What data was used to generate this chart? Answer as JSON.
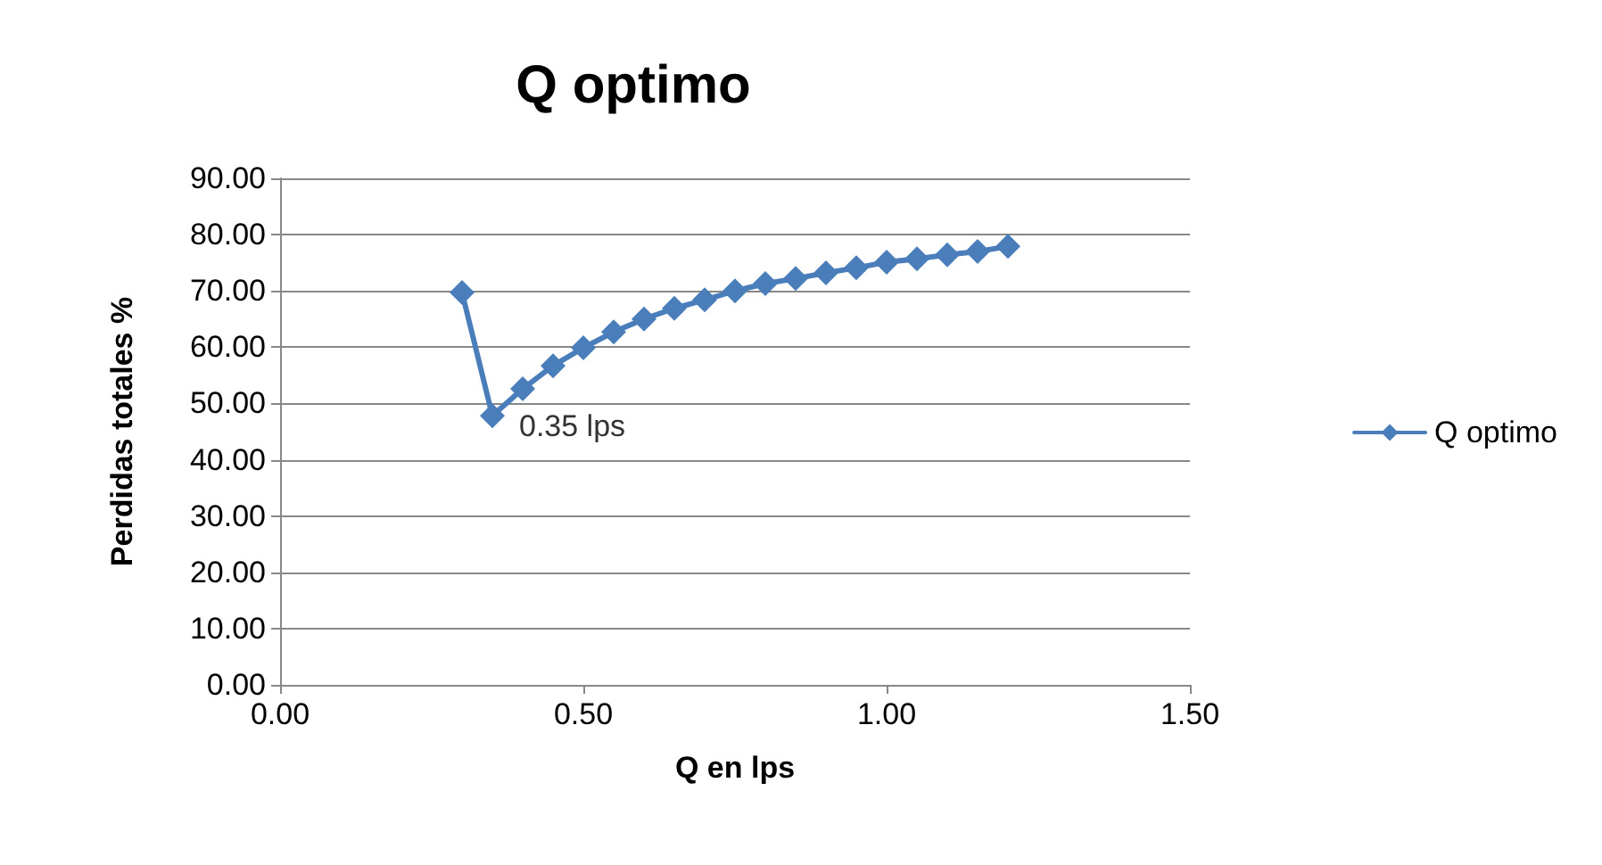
{
  "chart_data": {
    "type": "line",
    "title": "Q optimo",
    "xlabel": "Q en lps",
    "ylabel": "Perdidas totales %",
    "series": [
      {
        "name": "Q optimo",
        "color": "#4a7ebb",
        "x": [
          0.3,
          0.35,
          0.4,
          0.45,
          0.5,
          0.55,
          0.6,
          0.65,
          0.7,
          0.75,
          0.8,
          0.85,
          0.9,
          0.95,
          1.0,
          1.05,
          1.1,
          1.15,
          1.2
        ],
        "values": [
          69.7,
          47.8,
          52.6,
          56.7,
          59.9,
          62.7,
          65.0,
          66.9,
          68.4,
          70.0,
          71.3,
          72.2,
          73.2,
          74.1,
          75.1,
          75.7,
          76.4,
          77.0,
          77.9
        ]
      }
    ],
    "annotations": [
      {
        "text": "0.35 lps",
        "x": 0.35,
        "y": 47.8
      }
    ],
    "xlim": [
      0,
      1.5
    ],
    "xticks": [
      {
        "value": 0,
        "label": "0.00"
      },
      {
        "value": 0.5,
        "label": "0.50"
      },
      {
        "value": 1,
        "label": "1.00"
      },
      {
        "value": 1.5,
        "label": "1.50"
      }
    ],
    "ylim": [
      0,
      90
    ],
    "yticks": [
      {
        "value": 0,
        "label": "0.00"
      },
      {
        "value": 10,
        "label": "10.00"
      },
      {
        "value": 20,
        "label": "20.00"
      },
      {
        "value": 30,
        "label": "30.00"
      },
      {
        "value": 40,
        "label": "40.00"
      },
      {
        "value": 50,
        "label": "50.00"
      },
      {
        "value": 60,
        "label": "60.00"
      },
      {
        "value": 70,
        "label": "70.00"
      },
      {
        "value": 80,
        "label": "80.00"
      },
      {
        "value": 90,
        "label": "90.00"
      }
    ],
    "grid": "y",
    "legend": "right",
    "marker": "diamond",
    "line_style": "solid"
  }
}
